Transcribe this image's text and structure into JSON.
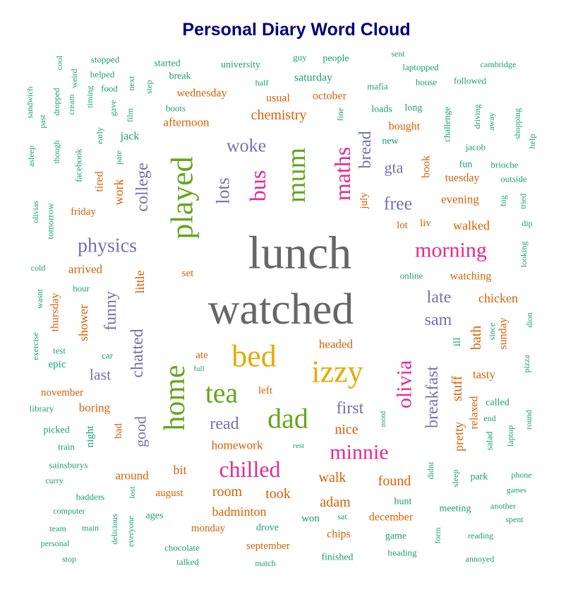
{
  "chart_data": {
    "type": "wordcloud",
    "title": "Personal Diary Word Cloud",
    "palette": [
      "#1b9e77",
      "#d95f02",
      "#7570b3",
      "#e7298a",
      "#66a61e",
      "#e6ab02",
      "#a6761d",
      "#666666"
    ],
    "words": [
      {
        "text": "lunch",
        "size": 66,
        "color": 7
      },
      {
        "text": "watched",
        "size": 62,
        "color": 7
      },
      {
        "text": "played",
        "size": 44,
        "color": 4,
        "rotate": true
      },
      {
        "text": "bed",
        "size": 44,
        "color": 5
      },
      {
        "text": "izzy",
        "size": 44,
        "color": 5
      },
      {
        "text": "home",
        "size": 42,
        "color": 4,
        "rotate": true
      },
      {
        "text": "dad",
        "size": 40,
        "color": 4
      },
      {
        "text": "tea",
        "size": 40,
        "color": 4
      },
      {
        "text": "mum",
        "size": 38,
        "color": 4,
        "rotate": true
      },
      {
        "text": "maths",
        "size": 32,
        "color": 3,
        "rotate": true
      },
      {
        "text": "bus",
        "size": 32,
        "color": 3,
        "rotate": true
      },
      {
        "text": "chilled",
        "size": 32,
        "color": 3
      },
      {
        "text": "morning",
        "size": 30,
        "color": 3
      },
      {
        "text": "minnie",
        "size": 30,
        "color": 3
      },
      {
        "text": "olivia",
        "size": 30,
        "color": 3,
        "rotate": true
      },
      {
        "text": "physics",
        "size": 28,
        "color": 2
      },
      {
        "text": "woke",
        "size": 26,
        "color": 2
      },
      {
        "text": "free",
        "size": 26,
        "color": 2
      },
      {
        "text": "lots",
        "size": 26,
        "color": 2,
        "rotate": true
      },
      {
        "text": "breakfast",
        "size": 24,
        "color": 2,
        "rotate": true
      },
      {
        "text": "first",
        "size": 24,
        "color": 2
      },
      {
        "text": "read",
        "size": 24,
        "color": 2
      },
      {
        "text": "sam",
        "size": 24,
        "color": 2
      },
      {
        "text": "late",
        "size": 24,
        "color": 2
      },
      {
        "text": "funny",
        "size": 24,
        "color": 2,
        "rotate": true
      },
      {
        "text": "chatted",
        "size": 24,
        "color": 2,
        "rotate": true
      },
      {
        "text": "bread",
        "size": 24,
        "color": 2,
        "rotate": true
      },
      {
        "text": "college",
        "size": 24,
        "color": 2,
        "rotate": true
      },
      {
        "text": "gta",
        "size": 22,
        "color": 2
      },
      {
        "text": "last",
        "size": 22,
        "color": 2
      },
      {
        "text": "good",
        "size": 22,
        "color": 2,
        "rotate": true
      },
      {
        "text": "chemistry",
        "size": 20,
        "color": 1
      },
      {
        "text": "walk",
        "size": 20,
        "color": 1
      },
      {
        "text": "adam",
        "size": 20,
        "color": 1
      },
      {
        "text": "room",
        "size": 20,
        "color": 1
      },
      {
        "text": "took",
        "size": 20,
        "color": 1
      },
      {
        "text": "found",
        "size": 20,
        "color": 1
      },
      {
        "text": "nice",
        "size": 20,
        "color": 1
      },
      {
        "text": "stuff",
        "size": 20,
        "color": 1,
        "rotate": true
      },
      {
        "text": "bath",
        "size": 20,
        "color": 1,
        "rotate": true
      },
      {
        "text": "walked",
        "size": 18,
        "color": 1
      },
      {
        "text": "badminton",
        "size": 18,
        "color": 1
      },
      {
        "text": "bit",
        "size": 18,
        "color": 1
      },
      {
        "text": "chicken",
        "size": 18,
        "color": 1
      },
      {
        "text": "pretty",
        "size": 18,
        "color": 1,
        "rotate": true
      },
      {
        "text": "little",
        "size": 18,
        "color": 1,
        "rotate": true
      },
      {
        "text": "work",
        "size": 18,
        "color": 1,
        "rotate": true
      },
      {
        "text": "shower",
        "size": 18,
        "color": 1,
        "rotate": true
      },
      {
        "text": "evening",
        "size": 17,
        "color": 1
      },
      {
        "text": "headed",
        "size": 17,
        "color": 1
      },
      {
        "text": "around",
        "size": 17,
        "color": 1
      },
      {
        "text": "homework",
        "size": 17,
        "color": 1
      },
      {
        "text": "afternoon",
        "size": 17,
        "color": 1
      },
      {
        "text": "boring",
        "size": 17,
        "color": 1
      },
      {
        "text": "arrived",
        "size": 17,
        "color": 1
      },
      {
        "text": "tasty",
        "size": 17,
        "color": 1
      },
      {
        "text": "chips",
        "size": 16,
        "color": 1
      },
      {
        "text": "bought",
        "size": 16,
        "color": 1
      },
      {
        "text": "wednesday",
        "size": 16,
        "color": 1
      },
      {
        "text": "october",
        "size": 16,
        "color": 1
      },
      {
        "text": "tuesday",
        "size": 16,
        "color": 1
      },
      {
        "text": "watching",
        "size": 16,
        "color": 1
      },
      {
        "text": "december",
        "size": 16,
        "color": 1
      },
      {
        "text": "usual",
        "size": 16,
        "color": 1
      },
      {
        "text": "thursday",
        "size": 16,
        "color": 1,
        "rotate": true
      },
      {
        "text": "tired",
        "size": 16,
        "color": 1,
        "rotate": true
      },
      {
        "text": "book",
        "size": 16,
        "color": 1,
        "rotate": true
      },
      {
        "text": "sunday",
        "size": 16,
        "color": 1,
        "rotate": true
      },
      {
        "text": "relaxed",
        "size": 16,
        "color": 1,
        "rotate": true
      },
      {
        "text": "bad",
        "size": 15,
        "color": 1,
        "rotate": true
      },
      {
        "text": "ate",
        "size": 15,
        "color": 1
      },
      {
        "text": "left",
        "size": 15,
        "color": 1
      },
      {
        "text": "lot",
        "size": 15,
        "color": 1
      },
      {
        "text": "liv",
        "size": 15,
        "color": 1
      },
      {
        "text": "july",
        "size": 15,
        "color": 1,
        "rotate": true
      },
      {
        "text": "monday",
        "size": 15,
        "color": 1
      },
      {
        "text": "september",
        "size": 15,
        "color": 1
      },
      {
        "text": "august",
        "size": 15,
        "color": 1
      },
      {
        "text": "november",
        "size": 15,
        "color": 1
      },
      {
        "text": "friday",
        "size": 15,
        "color": 1
      },
      {
        "text": "set",
        "size": 15,
        "color": 1
      },
      {
        "text": "jack",
        "size": 16,
        "color": 0
      },
      {
        "text": "saturday",
        "size": 16,
        "color": 0
      },
      {
        "text": "epic",
        "size": 15,
        "color": 0
      },
      {
        "text": "night",
        "size": 15,
        "color": 0,
        "rotate": true
      },
      {
        "text": "ill",
        "size": 15,
        "color": 0,
        "rotate": true
      },
      {
        "text": "won",
        "size": 15,
        "color": 0
      },
      {
        "text": "park",
        "size": 14,
        "color": 0
      },
      {
        "text": "hunt",
        "size": 14,
        "color": 0
      },
      {
        "text": "game",
        "size": 14,
        "color": 0
      },
      {
        "text": "meeting",
        "size": 14,
        "color": 0
      },
      {
        "text": "called",
        "size": 14,
        "color": 0
      },
      {
        "text": "fun",
        "size": 14,
        "color": 0
      },
      {
        "text": "brioche",
        "size": 13,
        "color": 0
      },
      {
        "text": "outside",
        "size": 13,
        "color": 0
      },
      {
        "text": "jacob",
        "size": 13,
        "color": 0
      },
      {
        "text": "loads",
        "size": 14,
        "color": 0
      },
      {
        "text": "long",
        "size": 14,
        "color": 0
      },
      {
        "text": "new",
        "size": 14,
        "color": 0
      },
      {
        "text": "laptopped",
        "size": 13,
        "color": 0
      },
      {
        "text": "house",
        "size": 13,
        "color": 0
      },
      {
        "text": "followed",
        "size": 13,
        "color": 0
      },
      {
        "text": "cambridge",
        "size": 12,
        "color": 0
      },
      {
        "text": "mafia",
        "size": 13,
        "color": 0
      },
      {
        "text": "people",
        "size": 14,
        "color": 0
      },
      {
        "text": "guy",
        "size": 13,
        "color": 0
      },
      {
        "text": "sent",
        "size": 12,
        "color": 0
      },
      {
        "text": "university",
        "size": 14,
        "color": 0
      },
      {
        "text": "half",
        "size": 12,
        "color": 0
      },
      {
        "text": "started",
        "size": 14,
        "color": 0
      },
      {
        "text": "break",
        "size": 14,
        "color": 0
      },
      {
        "text": "boots",
        "size": 13,
        "color": 0
      },
      {
        "text": "stopped",
        "size": 13,
        "color": 0
      },
      {
        "text": "helped",
        "size": 13,
        "color": 0
      },
      {
        "text": "food",
        "size": 13,
        "color": 0
      },
      {
        "text": "cool",
        "size": 12,
        "color": 0,
        "rotate": true
      },
      {
        "text": "weird",
        "size": 12,
        "color": 0,
        "rotate": true
      },
      {
        "text": "next",
        "size": 12,
        "color": 0,
        "rotate": true
      },
      {
        "text": "step",
        "size": 12,
        "color": 0,
        "rotate": true
      },
      {
        "text": "timing",
        "size": 12,
        "color": 0,
        "rotate": true
      },
      {
        "text": "gave",
        "size": 12,
        "color": 0,
        "rotate": true
      },
      {
        "text": "film",
        "size": 12,
        "color": 0,
        "rotate": true
      },
      {
        "text": "cream",
        "size": 12,
        "color": 0,
        "rotate": true
      },
      {
        "text": "dropped",
        "size": 12,
        "color": 0,
        "rotate": true
      },
      {
        "text": "past",
        "size": 12,
        "color": 0,
        "rotate": true
      },
      {
        "text": "sandwich",
        "size": 12,
        "color": 0,
        "rotate": true
      },
      {
        "text": "early",
        "size": 12,
        "color": 0,
        "rotate": true
      },
      {
        "text": "pate",
        "size": 12,
        "color": 0,
        "rotate": true
      },
      {
        "text": "facebook",
        "size": 13,
        "color": 0,
        "rotate": true
      },
      {
        "text": "though",
        "size": 12,
        "color": 0,
        "rotate": true
      },
      {
        "text": "asleep",
        "size": 12,
        "color": 0,
        "rotate": true
      },
      {
        "text": "olivias",
        "size": 12,
        "color": 0,
        "rotate": true
      },
      {
        "text": "tomorrow",
        "size": 13,
        "color": 0,
        "rotate": true
      },
      {
        "text": "cold",
        "size": 12,
        "color": 0
      },
      {
        "text": "hour",
        "size": 13,
        "color": 0
      },
      {
        "text": "wasnt",
        "size": 12,
        "color": 0,
        "rotate": true
      },
      {
        "text": "exercise",
        "size": 12,
        "color": 0,
        "rotate": true
      },
      {
        "text": "test",
        "size": 13,
        "color": 0
      },
      {
        "text": "car",
        "size": 13,
        "color": 0
      },
      {
        "text": "full",
        "size": 11,
        "color": 0
      },
      {
        "text": "library",
        "size": 13,
        "color": 0
      },
      {
        "text": "picked",
        "size": 14,
        "color": 0
      },
      {
        "text": "train",
        "size": 13,
        "color": 0
      },
      {
        "text": "sainsburys",
        "size": 13,
        "color": 0
      },
      {
        "text": "curry",
        "size": 12,
        "color": 0
      },
      {
        "text": "badders",
        "size": 13,
        "color": 0
      },
      {
        "text": "computer",
        "size": 12,
        "color": 0
      },
      {
        "text": "team",
        "size": 12,
        "color": 0
      },
      {
        "text": "main",
        "size": 12,
        "color": 0
      },
      {
        "text": "personal",
        "size": 12,
        "color": 0
      },
      {
        "text": "stop",
        "size": 12,
        "color": 0
      },
      {
        "text": "lost",
        "size": 12,
        "color": 0,
        "rotate": true
      },
      {
        "text": "ages",
        "size": 14,
        "color": 0
      },
      {
        "text": "delicious",
        "size": 12,
        "color": 0,
        "rotate": true
      },
      {
        "text": "everyone",
        "size": 12,
        "color": 0,
        "rotate": true
      },
      {
        "text": "chocolate",
        "size": 13,
        "color": 0
      },
      {
        "text": "talked",
        "size": 13,
        "color": 0
      },
      {
        "text": "drove",
        "size": 14,
        "color": 0
      },
      {
        "text": "match",
        "size": 12,
        "color": 0
      },
      {
        "text": "finished",
        "size": 14,
        "color": 0
      },
      {
        "text": "sat",
        "size": 12,
        "color": 0
      },
      {
        "text": "heading",
        "size": 13,
        "color": 0
      },
      {
        "text": "annoyed",
        "size": 12,
        "color": 0
      },
      {
        "text": "reading",
        "size": 12,
        "color": 0
      },
      {
        "text": "spent",
        "size": 12,
        "color": 0
      },
      {
        "text": "another",
        "size": 12,
        "color": 0
      },
      {
        "text": "games",
        "size": 11,
        "color": 0
      },
      {
        "text": "phone",
        "size": 12,
        "color": 0
      },
      {
        "text": "rest",
        "size": 11,
        "color": 0
      },
      {
        "text": "online",
        "size": 13,
        "color": 0
      },
      {
        "text": "end",
        "size": 12,
        "color": 0
      },
      {
        "text": "motd",
        "size": 11,
        "color": 0,
        "rotate": true
      },
      {
        "text": "didnt",
        "size": 12,
        "color": 0,
        "rotate": true
      },
      {
        "text": "sleep",
        "size": 12,
        "color": 0,
        "rotate": true
      },
      {
        "text": "form",
        "size": 12,
        "color": 0,
        "rotate": true
      },
      {
        "text": "salad",
        "size": 13,
        "color": 0,
        "rotate": true
      },
      {
        "text": "laptop",
        "size": 12,
        "color": 0,
        "rotate": true
      },
      {
        "text": "round",
        "size": 12,
        "color": 0,
        "rotate": true
      },
      {
        "text": "since",
        "size": 12,
        "color": 0,
        "rotate": true
      },
      {
        "text": "dion",
        "size": 12,
        "color": 0,
        "rotate": true
      },
      {
        "text": "pizza",
        "size": 12,
        "color": 0,
        "rotate": true
      },
      {
        "text": "dip",
        "size": 12,
        "color": 0
      },
      {
        "text": "looking",
        "size": 12,
        "color": 0,
        "rotate": true
      },
      {
        "text": "big",
        "size": 12,
        "color": 0,
        "rotate": true
      },
      {
        "text": "tried",
        "size": 12,
        "color": 0,
        "rotate": true
      },
      {
        "text": "challenge",
        "size": 13,
        "color": 0,
        "rotate": true
      },
      {
        "text": "driving",
        "size": 12,
        "color": 0,
        "rotate": true
      },
      {
        "text": "away",
        "size": 12,
        "color": 0,
        "rotate": true
      },
      {
        "text": "shopping",
        "size": 12,
        "color": 0,
        "rotate": true
      },
      {
        "text": "help",
        "size": 12,
        "color": 0,
        "rotate": true
      },
      {
        "text": "fine",
        "size": 12,
        "color": 0,
        "rotate": true
      }
    ]
  }
}
